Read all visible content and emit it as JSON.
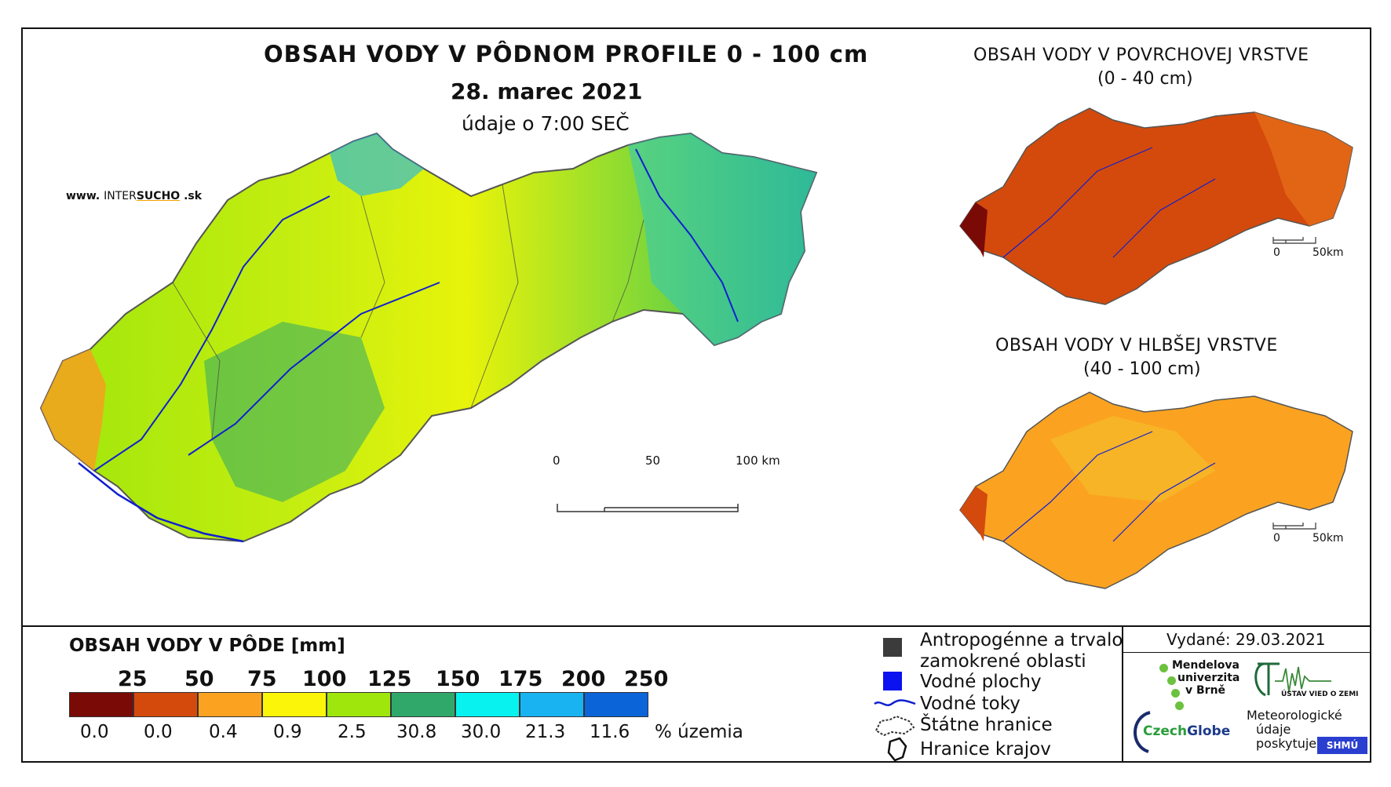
{
  "header": {
    "title": "OBSAH VODY V PÔDNOM PROFILE 0 - 100 cm",
    "date": "28. marec 2021",
    "time_note": "údaje o 7:00 SEČ",
    "website_prefix": "www.",
    "website_brand_a": "INTER",
    "website_brand_b": "SUCHO",
    "website_suffix": ".sk"
  },
  "main_map": {
    "scalebar": {
      "labels": [
        "0",
        "50",
        "100 km"
      ]
    }
  },
  "inset_top": {
    "title": "OBSAH VODY V POVRCHOVEJ VRSTVE",
    "subtitle": "(0 - 40 cm)",
    "scalebar": {
      "labels": [
        "0",
        "50km"
      ]
    }
  },
  "inset_bottom": {
    "title": "OBSAH VODY V HLBŠEJ VRSTVE",
    "subtitle": "(40 - 100 cm)",
    "scalebar": {
      "labels": [
        "0",
        "50km"
      ]
    }
  },
  "legend": {
    "title": "OBSAH VODY V PÔDE [mm]",
    "thresholds": [
      "25",
      "50",
      "75",
      "100",
      "125",
      "150",
      "175",
      "200",
      "250"
    ],
    "classes": [
      {
        "color": "#7a0a06",
        "pct": "0.0"
      },
      {
        "color": "#d44a0c",
        "pct": "0.0"
      },
      {
        "color": "#fba321",
        "pct": "0.4"
      },
      {
        "color": "#fbf50a",
        "pct": "0.9"
      },
      {
        "color": "#9fe60c",
        "pct": "2.5"
      },
      {
        "color": "#2fa86a",
        "pct": "30.8"
      },
      {
        "color": "#08f3f0",
        "pct": "30.0"
      },
      {
        "color": "#19b3f1",
        "pct": "21.3"
      },
      {
        "color": "#0b64d8",
        "pct": "11.6"
      }
    ],
    "pct_unit": "% územia",
    "items": [
      {
        "label": "Antropogénne a trvalo",
        "label2": "zamokrené oblasti",
        "icon": "dark-square-icon",
        "color": "#3b3b3b"
      },
      {
        "label": "Vodné plochy",
        "icon": "blue-square-icon",
        "color": "#0a12f0"
      },
      {
        "label": "Vodné toky",
        "icon": "river-line-icon",
        "color": "#1020d0"
      },
      {
        "label": "Štátne hranice",
        "icon": "state-border-icon"
      },
      {
        "label": "Hranice krajov",
        "icon": "region-border-icon"
      }
    ]
  },
  "credits": {
    "issued": "Vydané: 29.03.2021",
    "mendel_1": "Mendelova",
    "mendel_2": "univerzita",
    "mendel_3": "v Brně",
    "czechglobe_a": "Czech",
    "czechglobe_b": "Globe",
    "uvgz": "ÚSTAV VIED O ZEMI",
    "meteo_1": "Meteorologické",
    "meteo_2": "údaje",
    "meteo_3": "poskytuje:",
    "shmu": "SHMÚ"
  }
}
